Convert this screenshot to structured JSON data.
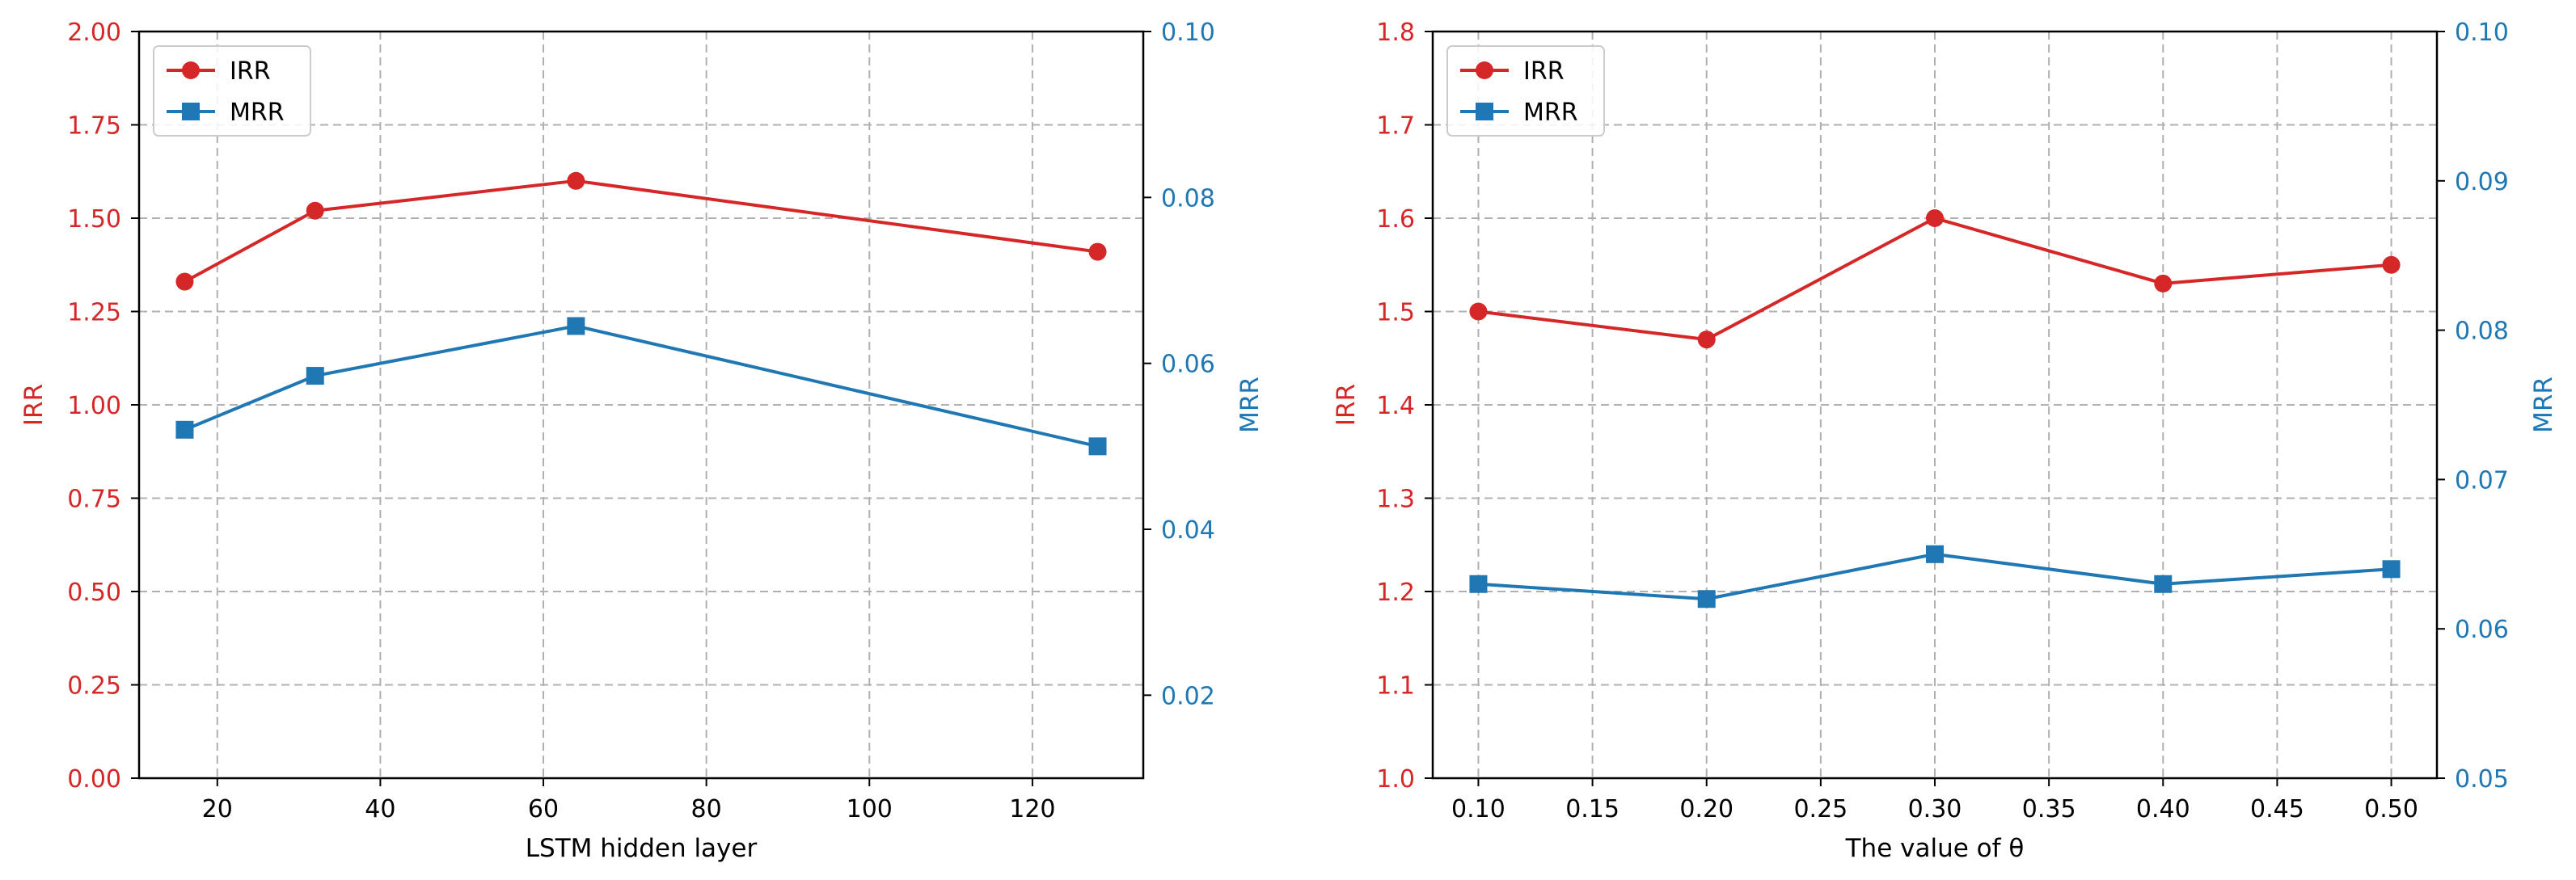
{
  "colors": {
    "irr": "#d62728",
    "mrr": "#1f77b4",
    "grid": "#b0b0b0",
    "axis": "#000000",
    "text": "#000000"
  },
  "chart_data": [
    {
      "type": "line",
      "x": [
        16,
        32,
        64,
        128
      ],
      "xlabel": "LSTM hidden layer",
      "xlim": [
        10.4,
        133.6
      ],
      "xticks": [
        20,
        40,
        60,
        80,
        100,
        120
      ],
      "xtick_labels": [
        "20",
        "40",
        "60",
        "80",
        "100",
        "120"
      ],
      "grid": true,
      "legend": "top-left",
      "left_axis": {
        "label": "IRR",
        "ylim": [
          0.0,
          2.0
        ],
        "ticks": [
          0.0,
          0.25,
          0.5,
          0.75,
          1.0,
          1.25,
          1.5,
          1.75,
          2.0
        ],
        "tick_labels": [
          "0.00",
          "0.25",
          "0.50",
          "0.75",
          "1.00",
          "1.25",
          "1.50",
          "1.75",
          "2.00"
        ]
      },
      "right_axis": {
        "label": "MRR",
        "ylim": [
          0.01,
          0.1
        ],
        "ticks": [
          0.02,
          0.04,
          0.06,
          0.08,
          0.1
        ],
        "tick_labels": [
          "0.02",
          "0.04",
          "0.06",
          "0.08",
          "0.10"
        ]
      },
      "series": [
        {
          "name": "IRR",
          "axis": "left",
          "marker": "circle",
          "values": [
            1.33,
            1.52,
            1.6,
            1.41
          ]
        },
        {
          "name": "MRR",
          "axis": "right",
          "marker": "square",
          "values": [
            0.052,
            0.0585,
            0.0645,
            0.05
          ]
        }
      ]
    },
    {
      "type": "line",
      "x": [
        0.1,
        0.2,
        0.3,
        0.4,
        0.5
      ],
      "xlabel": "The value of θ",
      "xlim": [
        0.08,
        0.52
      ],
      "xticks": [
        0.1,
        0.15,
        0.2,
        0.25,
        0.3,
        0.35,
        0.4,
        0.45,
        0.5
      ],
      "xtick_labels": [
        "0.10",
        "0.15",
        "0.20",
        "0.25",
        "0.30",
        "0.35",
        "0.40",
        "0.45",
        "0.50"
      ],
      "grid": true,
      "legend": "top-left",
      "left_axis": {
        "label": "IRR",
        "ylim": [
          1.0,
          1.8
        ],
        "ticks": [
          1.0,
          1.1,
          1.2,
          1.3,
          1.4,
          1.5,
          1.6,
          1.7,
          1.8
        ],
        "tick_labels": [
          "1.0",
          "1.1",
          "1.2",
          "1.3",
          "1.4",
          "1.5",
          "1.6",
          "1.7",
          "1.8"
        ]
      },
      "right_axis": {
        "label": "MRR",
        "ylim": [
          0.05,
          0.1
        ],
        "ticks": [
          0.05,
          0.06,
          0.07,
          0.08,
          0.09,
          0.1
        ],
        "tick_labels": [
          "0.05",
          "0.06",
          "0.07",
          "0.08",
          "0.09",
          "0.10"
        ]
      },
      "series": [
        {
          "name": "IRR",
          "axis": "left",
          "marker": "circle",
          "values": [
            1.5,
            1.47,
            1.6,
            1.53,
            1.55
          ]
        },
        {
          "name": "MRR",
          "axis": "right",
          "marker": "square",
          "values": [
            0.063,
            0.062,
            0.065,
            0.063,
            0.064
          ]
        }
      ]
    }
  ]
}
